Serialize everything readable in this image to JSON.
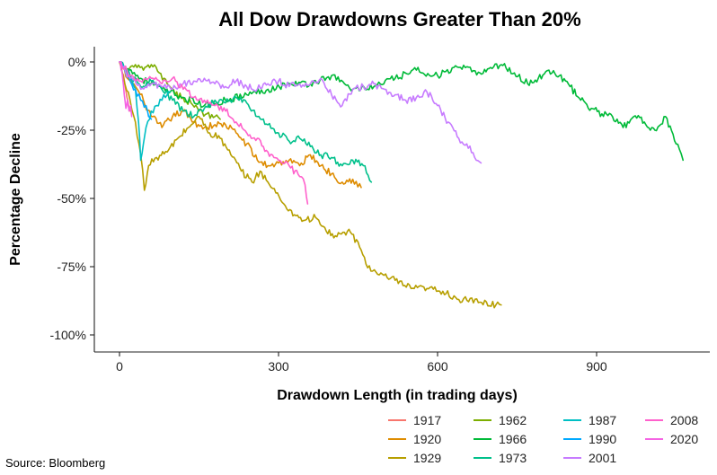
{
  "source_note": "Source:  Bloomberg",
  "chart_data": {
    "type": "line",
    "title": "All Dow Drawdowns Greater Than 20%",
    "xlabel": "Drawdown Length (in trading days)",
    "ylabel": "Percentage Decline",
    "xlim": [
      -15,
      1090
    ],
    "ylim": [
      -100,
      0
    ],
    "x_ticks": [
      0,
      300,
      600,
      900
    ],
    "x_tick_labels": [
      "0",
      "300",
      "600",
      "900"
    ],
    "y_ticks": [
      0,
      -25,
      -50,
      -75,
      -100
    ],
    "y_tick_labels": [
      "0%",
      "-25%",
      "-50%",
      "-75%",
      "-100%"
    ],
    "grid": false,
    "legend_position": "bottom-right",
    "series": [
      {
        "name": "1917",
        "color": "#F8766D",
        "points": [
          [
            0,
            0
          ],
          [
            5,
            -4
          ],
          [
            10,
            -8
          ],
          [
            14,
            -13
          ],
          [
            18,
            -17
          ],
          [
            20,
            -18
          ]
        ]
      },
      {
        "name": "1920",
        "color": "#DE8C00",
        "points": [
          [
            0,
            0
          ],
          [
            15,
            -6
          ],
          [
            30,
            -9
          ],
          [
            45,
            -14
          ],
          [
            60,
            -20
          ],
          [
            80,
            -24
          ],
          [
            100,
            -20
          ],
          [
            120,
            -18
          ],
          [
            140,
            -22
          ],
          [
            160,
            -24
          ],
          [
            180,
            -23
          ],
          [
            200,
            -23
          ],
          [
            220,
            -26
          ],
          [
            240,
            -30
          ],
          [
            260,
            -36
          ],
          [
            280,
            -38
          ],
          [
            300,
            -37
          ],
          [
            320,
            -36
          ],
          [
            340,
            -38
          ],
          [
            360,
            -34
          ],
          [
            380,
            -38
          ],
          [
            400,
            -41
          ],
          [
            420,
            -44
          ],
          [
            440,
            -43
          ],
          [
            456,
            -46
          ]
        ]
      },
      {
        "name": "1929",
        "color": "#B79F00",
        "points": [
          [
            0,
            0
          ],
          [
            10,
            -8
          ],
          [
            20,
            -14
          ],
          [
            30,
            -22
          ],
          [
            40,
            -34
          ],
          [
            47,
            -47
          ],
          [
            55,
            -38
          ],
          [
            70,
            -35
          ],
          [
            90,
            -33
          ],
          [
            110,
            -28
          ],
          [
            130,
            -24
          ],
          [
            150,
            -20
          ],
          [
            170,
            -26
          ],
          [
            190,
            -28
          ],
          [
            210,
            -34
          ],
          [
            230,
            -40
          ],
          [
            250,
            -44
          ],
          [
            265,
            -40
          ],
          [
            280,
            -44
          ],
          [
            295,
            -48
          ],
          [
            310,
            -52
          ],
          [
            330,
            -56
          ],
          [
            350,
            -58
          ],
          [
            370,
            -57
          ],
          [
            390,
            -62
          ],
          [
            410,
            -64
          ],
          [
            430,
            -62
          ],
          [
            450,
            -66
          ],
          [
            465,
            -74
          ],
          [
            490,
            -78
          ],
          [
            520,
            -80
          ],
          [
            550,
            -83
          ],
          [
            580,
            -83
          ],
          [
            610,
            -84
          ],
          [
            640,
            -87
          ],
          [
            680,
            -88
          ],
          [
            710,
            -89
          ],
          [
            720,
            -89
          ]
        ]
      },
      {
        "name": "1962",
        "color": "#7CAE00",
        "points": [
          [
            0,
            0
          ],
          [
            15,
            -4
          ],
          [
            30,
            -1
          ],
          [
            45,
            -3
          ],
          [
            60,
            -1
          ],
          [
            75,
            -4
          ],
          [
            90,
            -8
          ],
          [
            105,
            -12
          ],
          [
            120,
            -13
          ],
          [
            135,
            -15
          ],
          [
            150,
            -18
          ],
          [
            165,
            -19
          ],
          [
            180,
            -20
          ],
          [
            190,
            -21
          ]
        ]
      },
      {
        "name": "1966",
        "color": "#00BA38",
        "points": [
          [
            0,
            0
          ],
          [
            40,
            -6
          ],
          [
            80,
            -10
          ],
          [
            120,
            -13
          ],
          [
            160,
            -16
          ],
          [
            200,
            -14
          ],
          [
            240,
            -12
          ],
          [
            280,
            -10
          ],
          [
            320,
            -8
          ],
          [
            360,
            -8
          ],
          [
            400,
            -5
          ],
          [
            440,
            -10
          ],
          [
            480,
            -9
          ],
          [
            520,
            -6
          ],
          [
            560,
            -3
          ],
          [
            600,
            -5
          ],
          [
            640,
            -2
          ],
          [
            680,
            -4
          ],
          [
            700,
            -2
          ],
          [
            720,
            -1
          ],
          [
            745,
            -4
          ],
          [
            770,
            -8
          ],
          [
            790,
            -6
          ],
          [
            810,
            -3
          ],
          [
            830,
            -5
          ],
          [
            850,
            -9
          ],
          [
            870,
            -14
          ],
          [
            890,
            -17
          ],
          [
            910,
            -19
          ],
          [
            930,
            -20
          ],
          [
            950,
            -24
          ],
          [
            970,
            -20
          ],
          [
            990,
            -22
          ],
          [
            1010,
            -25
          ],
          [
            1030,
            -20
          ],
          [
            1050,
            -30
          ],
          [
            1063,
            -36
          ]
        ]
      },
      {
        "name": "1973",
        "color": "#00C08B",
        "points": [
          [
            0,
            0
          ],
          [
            20,
            -5
          ],
          [
            40,
            -9
          ],
          [
            60,
            -7
          ],
          [
            80,
            -10
          ],
          [
            100,
            -14
          ],
          [
            120,
            -18
          ],
          [
            140,
            -20
          ],
          [
            160,
            -17
          ],
          [
            180,
            -14
          ],
          [
            200,
            -15
          ],
          [
            220,
            -13
          ],
          [
            240,
            -15
          ],
          [
            260,
            -20
          ],
          [
            280,
            -23
          ],
          [
            300,
            -26
          ],
          [
            320,
            -29
          ],
          [
            340,
            -28
          ],
          [
            360,
            -31
          ],
          [
            380,
            -34
          ],
          [
            400,
            -35
          ],
          [
            420,
            -38
          ],
          [
            440,
            -36
          ],
          [
            460,
            -38
          ],
          [
            475,
            -44
          ]
        ]
      },
      {
        "name": "1987",
        "color": "#00BFC4",
        "points": [
          [
            0,
            0
          ],
          [
            10,
            -3
          ],
          [
            20,
            -6
          ],
          [
            30,
            -10
          ],
          [
            36,
            -22
          ],
          [
            40,
            -36
          ],
          [
            45,
            -30
          ],
          [
            50,
            -24
          ],
          [
            60,
            -18
          ],
          [
            70,
            -16
          ],
          [
            80,
            -14
          ],
          [
            90,
            -12
          ],
          [
            95,
            -11
          ]
        ]
      },
      {
        "name": "1990",
        "color": "#00A9FF",
        "points": [
          [
            0,
            0
          ],
          [
            10,
            -3
          ],
          [
            20,
            -7
          ],
          [
            30,
            -10
          ],
          [
            40,
            -14
          ],
          [
            50,
            -16
          ],
          [
            55,
            -20
          ],
          [
            60,
            -21
          ]
        ]
      },
      {
        "name": "2001",
        "color": "#C77CFF",
        "points": [
          [
            0,
            0
          ],
          [
            20,
            -6
          ],
          [
            40,
            -10
          ],
          [
            60,
            -8
          ],
          [
            80,
            -9
          ],
          [
            100,
            -10
          ],
          [
            120,
            -8
          ],
          [
            140,
            -7
          ],
          [
            160,
            -6
          ],
          [
            180,
            -8
          ],
          [
            200,
            -9
          ],
          [
            220,
            -7
          ],
          [
            240,
            -9
          ],
          [
            260,
            -10
          ],
          [
            280,
            -8
          ],
          [
            300,
            -7
          ],
          [
            320,
            -9
          ],
          [
            340,
            -8
          ],
          [
            360,
            -8
          ],
          [
            380,
            -6
          ],
          [
            400,
            -12
          ],
          [
            420,
            -16
          ],
          [
            440,
            -10
          ],
          [
            460,
            -9
          ],
          [
            480,
            -8
          ],
          [
            500,
            -10
          ],
          [
            520,
            -12
          ],
          [
            540,
            -14
          ],
          [
            560,
            -13
          ],
          [
            580,
            -11
          ],
          [
            600,
            -16
          ],
          [
            620,
            -22
          ],
          [
            640,
            -28
          ],
          [
            655,
            -30
          ],
          [
            670,
            -35
          ],
          [
            682,
            -37
          ]
        ]
      },
      {
        "name": "2008",
        "color": "#FF61CC",
        "points": [
          [
            0,
            0
          ],
          [
            20,
            -5
          ],
          [
            40,
            -7
          ],
          [
            60,
            -6
          ],
          [
            80,
            -8
          ],
          [
            100,
            -6
          ],
          [
            120,
            -10
          ],
          [
            140,
            -13
          ],
          [
            160,
            -14
          ],
          [
            180,
            -16
          ],
          [
            200,
            -18
          ],
          [
            220,
            -22
          ],
          [
            240,
            -26
          ],
          [
            260,
            -28
          ],
          [
            280,
            -33
          ],
          [
            300,
            -36
          ],
          [
            320,
            -38
          ],
          [
            340,
            -42
          ],
          [
            350,
            -45
          ],
          [
            355,
            -52
          ]
        ]
      },
      {
        "name": "2020",
        "color": "#F564E3",
        "points": [
          [
            0,
            0
          ],
          [
            3,
            -3
          ],
          [
            6,
            -6
          ],
          [
            9,
            -12
          ],
          [
            12,
            -17
          ],
          [
            15,
            -14
          ],
          [
            18,
            -18
          ],
          [
            21,
            -16
          ],
          [
            23,
            -20
          ]
        ]
      }
    ]
  }
}
